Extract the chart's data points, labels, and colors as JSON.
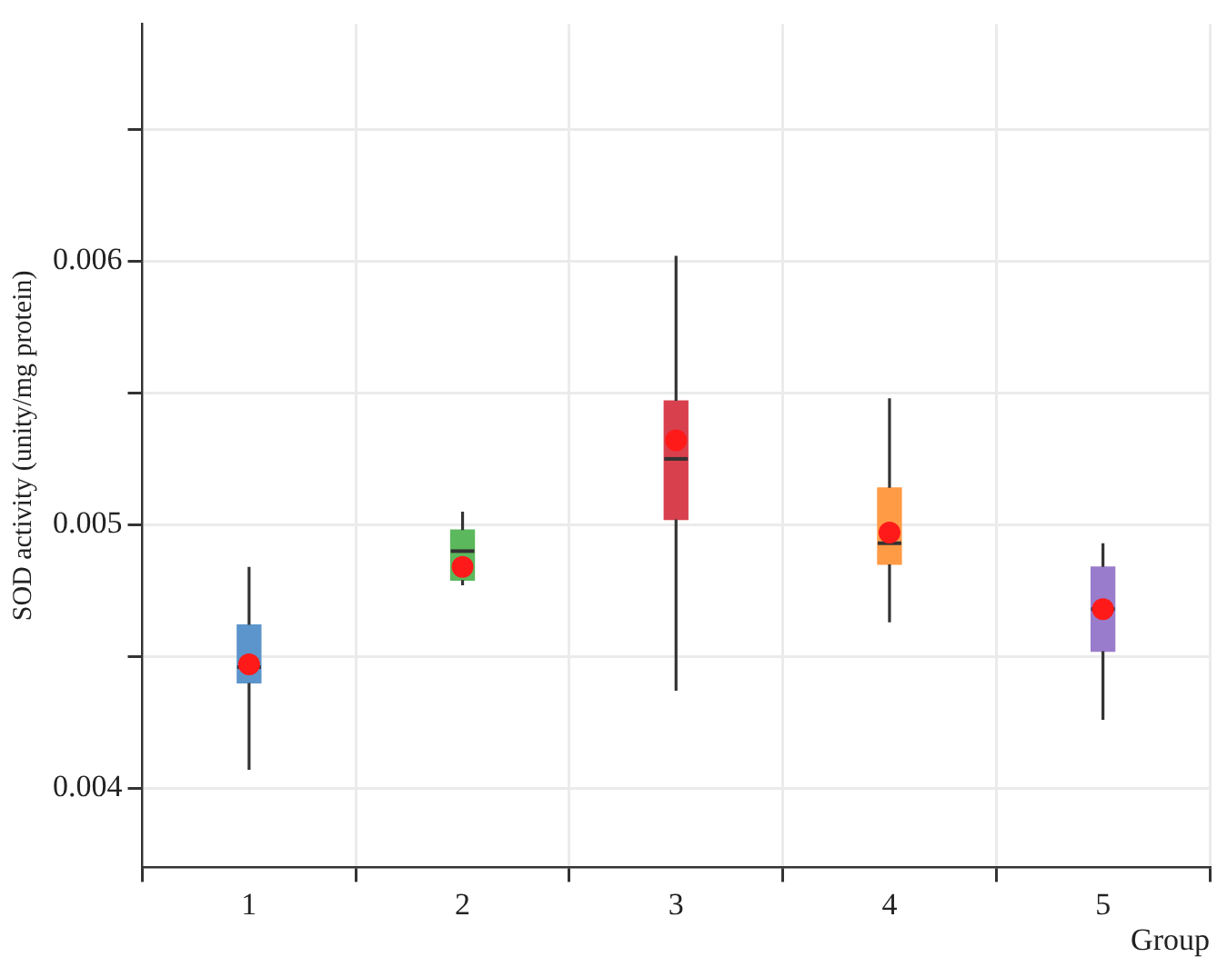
{
  "chart_data": {
    "type": "box",
    "xlabel": "Group",
    "ylabel": "SOD activity (unity/mg protein)",
    "categories": [
      "1",
      "2",
      "3",
      "4",
      "5"
    ],
    "boxes": [
      {
        "low": 0.00407,
        "q1": 0.0044,
        "median": 0.00446,
        "q3": 0.00462,
        "high": 0.00484,
        "mean": 0.00447
      },
      {
        "low": 0.00477,
        "q1": 0.00479,
        "median": 0.0049,
        "q3": 0.00498,
        "high": 0.00505,
        "mean": 0.00484
      },
      {
        "low": 0.00437,
        "q1": 0.00502,
        "median": 0.00525,
        "q3": 0.00547,
        "high": 0.00602,
        "mean": 0.00532
      },
      {
        "low": 0.00463,
        "q1": 0.00485,
        "median": 0.00493,
        "q3": 0.00514,
        "high": 0.00548,
        "mean": 0.00497
      },
      {
        "low": 0.00426,
        "q1": 0.00452,
        "median": 0.00468,
        "q3": 0.00484,
        "high": 0.00493,
        "mean": 0.00468
      }
    ],
    "colors": [
      "#5b95cc",
      "#5cb85c",
      "#d9404e",
      "#ff9a45",
      "#9a7ccc"
    ],
    "ylim": [
      0.0037,
      0.0069
    ],
    "yticks": [
      0.004,
      {
        "value": 0.0045,
        "label": null
      },
      0.005,
      {
        "value": 0.0055,
        "label": null
      },
      0.006,
      {
        "value": 0.0065,
        "label": null
      }
    ],
    "grid": true,
    "legend": false
  }
}
